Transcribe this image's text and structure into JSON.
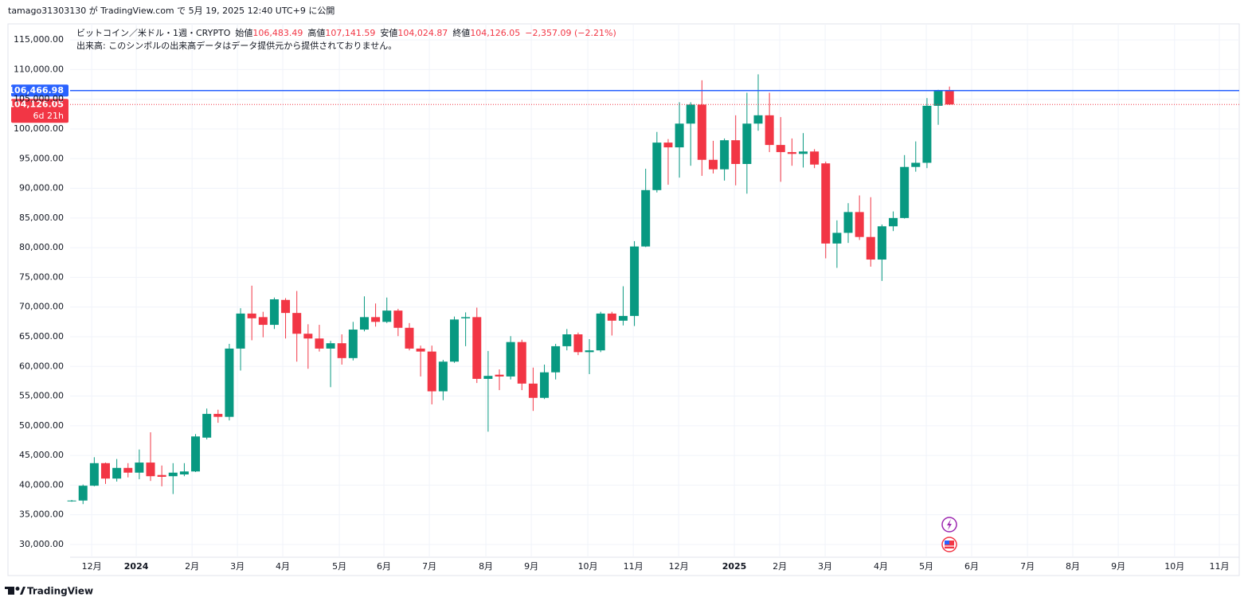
{
  "header": {
    "caption": "tamago31303130 が TradingView.com で 5月 19, 2025 12:40 UTC+9 に公開"
  },
  "chart_data": {
    "type": "candlestick",
    "legend": {
      "symbol": "ビットコイン／米ドル・1週・CRYPTO",
      "fields": [
        {
          "label": "始値",
          "value": "106,483.49"
        },
        {
          "label": "高値",
          "value": "107,141.59"
        },
        {
          "label": "安値",
          "value": "104,024.87"
        },
        {
          "label": "終値",
          "value": "104,126.05"
        }
      ],
      "change": "−2,357.09 (−2.21%)",
      "volume_note": "出来高: このシンボルの出来高データはデータ提供元から提供されておりません。"
    },
    "open": [
      37350,
      37400,
      39900,
      43700,
      41100,
      42900,
      42100,
      43800,
      41700,
      41500,
      41800,
      42300,
      48000,
      52000,
      51500,
      63000,
      68900,
      68300,
      67000,
      71200,
      69000,
      65500,
      64700,
      63000,
      63900,
      61400,
      66200,
      68300,
      67500,
      69400,
      66500,
      63000,
      62500,
      55800,
      60800,
      68100,
      68300,
      57900,
      58600,
      58300,
      64100,
      57100,
      54700,
      59000,
      63400,
      65400,
      62400,
      62700,
      68900,
      67700,
      68500,
      80200,
      89700,
      97700,
      96900,
      100900,
      104100,
      94800,
      93200,
      98100,
      94100,
      100900,
      102300,
      97300,
      96100,
      95800,
      96200,
      94200,
      80700,
      82500,
      86000,
      81800,
      78000,
      83600,
      85000,
      93600,
      94300,
      103900,
      106483.49
    ],
    "high": [
      37500,
      40100,
      44700,
      43800,
      44400,
      43700,
      46000,
      48900,
      43300,
      43700,
      43700,
      48600,
      52900,
      52700,
      63800,
      69800,
      73600,
      69200,
      71600,
      71500,
      72700,
      67100,
      67000,
      64300,
      65400,
      67500,
      71800,
      70600,
      71600,
      69700,
      67300,
      63500,
      63500,
      61100,
      68400,
      69100,
      69900,
      62600,
      59500,
      65100,
      64500,
      59800,
      60300,
      63800,
      66300,
      65700,
      64600,
      69200,
      69200,
      73500,
      81100,
      93300,
      99500,
      98300,
      104500,
      104500,
      108200,
      98000,
      98400,
      102300,
      106100,
      109200,
      106100,
      102000,
      98400,
      99300,
      96600,
      94500,
      84600,
      87500,
      88800,
      88500,
      83900,
      86100,
      95600,
      97900,
      105200,
      106600,
      107141.59
    ],
    "low": [
      37200,
      36800,
      39800,
      40200,
      40600,
      41300,
      41000,
      40700,
      39800,
      38500,
      41500,
      42200,
      47700,
      50500,
      50900,
      59300,
      64400,
      64900,
      66300,
      64700,
      60800,
      59600,
      62500,
      56500,
      60300,
      61000,
      65900,
      66700,
      67300,
      65100,
      62700,
      58300,
      53600,
      54300,
      60600,
      63400,
      57200,
      49000,
      56000,
      57800,
      56000,
      52500,
      54500,
      57800,
      62700,
      61900,
      58700,
      62400,
      65200,
      66900,
      66800,
      80100,
      89300,
      90600,
      91800,
      93800,
      92100,
      92500,
      91300,
      90500,
      89100,
      99700,
      96100,
      91100,
      93800,
      93500,
      93400,
      78200,
      76600,
      80800,
      81300,
      76800,
      74400,
      82800,
      84900,
      92800,
      93400,
      100700,
      104024.87
    ],
    "close": [
      37400,
      39900,
      43700,
      41100,
      42900,
      42100,
      43800,
      41500,
      41400,
      42100,
      42300,
      48200,
      52000,
      51500,
      63000,
      68900,
      68100,
      67000,
      71300,
      69000,
      65500,
      64700,
      63000,
      63900,
      61400,
      66200,
      68300,
      67500,
      69400,
      66500,
      63000,
      62500,
      55800,
      60800,
      67900,
      68300,
      57900,
      58400,
      58300,
      64100,
      57100,
      54700,
      59000,
      63400,
      65400,
      62400,
      62700,
      68900,
      67700,
      68500,
      80200,
      89700,
      97700,
      96900,
      100900,
      104100,
      94800,
      93200,
      98100,
      94100,
      100900,
      102300,
      97300,
      96100,
      95800,
      96200,
      94000,
      80700,
      82500,
      86000,
      81800,
      78000,
      83600,
      85000,
      93600,
      94300,
      103900,
      106500,
      104126.05
    ],
    "up_color": "#089981",
    "down_color": "#f23645",
    "ylim": [
      27850,
      117700
    ],
    "yticks": [
      {
        "value": 30000,
        "label": "30,000.00"
      },
      {
        "value": 35000,
        "label": "35,000.00"
      },
      {
        "value": 40000,
        "label": "40,000.00"
      },
      {
        "value": 45000,
        "label": "45,000.00"
      },
      {
        "value": 50000,
        "label": "50,000.00"
      },
      {
        "value": 55000,
        "label": "55,000.00"
      },
      {
        "value": 60000,
        "label": "60,000.00"
      },
      {
        "value": 65000,
        "label": "65,000.00"
      },
      {
        "value": 70000,
        "label": "70,000.00"
      },
      {
        "value": 75000,
        "label": "75,000.00"
      },
      {
        "value": 80000,
        "label": "80,000.00"
      },
      {
        "value": 85000,
        "label": "85,000.00"
      },
      {
        "value": 90000,
        "label": "90,000.00"
      },
      {
        "value": 95000,
        "label": "95,000.00"
      },
      {
        "value": 100000,
        "label": "100,000.00"
      },
      {
        "value": 105000,
        "label": "105,000.00"
      },
      {
        "value": 110000,
        "label": "110,000.00"
      },
      {
        "value": 115000,
        "label": "115,000.00"
      }
    ],
    "xlim": [
      -0.15,
      103.75
    ],
    "xticks": [
      {
        "value": 1.77,
        "label": "12月"
      },
      {
        "value": 5.73,
        "label": "2024"
      },
      {
        "value": 10.69,
        "label": "2月"
      },
      {
        "value": 14.72,
        "label": "3月"
      },
      {
        "value": 18.75,
        "label": "4月"
      },
      {
        "value": 23.78,
        "label": "5月"
      },
      {
        "value": 27.74,
        "label": "6月"
      },
      {
        "value": 31.78,
        "label": "7月"
      },
      {
        "value": 36.8,
        "label": "8月"
      },
      {
        "value": 40.84,
        "label": "9月"
      },
      {
        "value": 45.86,
        "label": "10月"
      },
      {
        "value": 49.9,
        "label": "11月"
      },
      {
        "value": 53.93,
        "label": "12月"
      },
      {
        "value": 58.88,
        "label": "2025"
      },
      {
        "value": 62.92,
        "label": "2月"
      },
      {
        "value": 66.95,
        "label": "3月"
      },
      {
        "value": 71.9,
        "label": "4月"
      },
      {
        "value": 75.94,
        "label": "5月"
      },
      {
        "value": 79.97,
        "label": "6月"
      },
      {
        "value": 84.93,
        "label": "7月"
      },
      {
        "value": 88.96,
        "label": "8月"
      },
      {
        "value": 93.0,
        "label": "9月"
      },
      {
        "value": 98.0,
        "label": "10月"
      },
      {
        "value": 101.98,
        "label": "11月"
      }
    ],
    "grid": true,
    "price_lines": [
      {
        "value": 106466.98,
        "label": "106,466.98",
        "color": "#2962ff"
      },
      {
        "value": 104126.05,
        "label": "104,126.05",
        "countdown": "6d 21h",
        "color": "#f23645"
      }
    ]
  },
  "footer": {
    "brand": "TradingView"
  }
}
